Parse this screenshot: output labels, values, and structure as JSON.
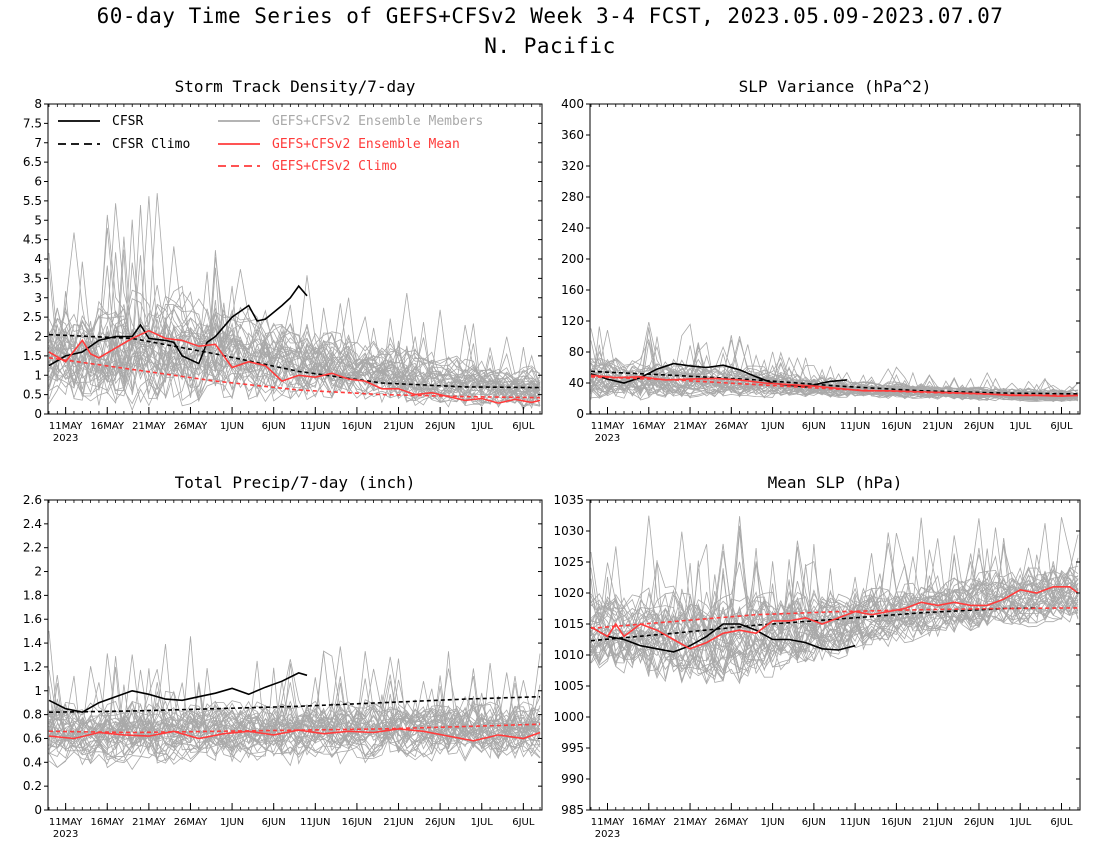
{
  "figure": {
    "title": "60-day Time Series of GEFS+CFSv2 Week 3-4 FCST, 2023.05.09-2023.07.07",
    "subtitle": "N. Pacific"
  },
  "colors": {
    "cfsr": "#000000",
    "members": "#a9a9a9",
    "ensemble_mean": "#ff3b3b",
    "gefs_climo": "#ff3b3b"
  },
  "legend": {
    "items": [
      {
        "label": "CFSR",
        "style": "solid",
        "color": "#000000"
      },
      {
        "label": "CFSR Climo",
        "style": "dashed",
        "color": "#000000"
      },
      {
        "label": "GEFS+CFSv2 Ensemble Members",
        "style": "solid",
        "color": "#a9a9a9"
      },
      {
        "label": "GEFS+CFSv2 Ensemble Mean",
        "style": "solid",
        "color": "#ff3b3b"
      },
      {
        "label": "GEFS+CFSv2 Climo",
        "style": "dashed",
        "color": "#ff3b3b"
      }
    ]
  },
  "chart_data": [
    {
      "type": "line",
      "title": "Storm Track Density/7-day",
      "x_start": "2023-05-09",
      "x_days": 60,
      "x_ticks": [
        "11MAY",
        "16MAY",
        "21MAY",
        "26MAY",
        "1JUN",
        "6JUN",
        "11JUN",
        "16JUN",
        "21JUN",
        "26JUN",
        "1JUL",
        "6JUL"
      ],
      "x_year_label": "2023",
      "ylim": [
        0,
        8
      ],
      "yticks": [
        "0",
        "0.5",
        "1",
        "1.5",
        "2",
        "2.5",
        "3",
        "3.5",
        "4",
        "4.5",
        "5",
        "5.5",
        "6",
        "6.5",
        "7",
        "7.5",
        "8"
      ],
      "grid": false,
      "series": [
        {
          "name": "CFSR",
          "color": "#000000",
          "dash": false,
          "x": [
            0,
            2,
            4,
            6,
            8,
            10,
            11,
            12,
            14,
            15,
            16,
            18,
            19,
            20,
            22,
            24,
            25,
            26,
            28,
            29,
            30,
            31
          ],
          "y": [
            1.25,
            1.5,
            1.6,
            1.9,
            2.0,
            2.0,
            2.3,
            1.95,
            1.9,
            1.85,
            1.5,
            1.3,
            1.85,
            2.0,
            2.5,
            2.8,
            2.4,
            2.45,
            2.8,
            3.0,
            3.3,
            3.05
          ]
        },
        {
          "name": "CFSR Climo",
          "color": "#000000",
          "dash": true,
          "x": [
            0,
            10,
            20,
            30,
            40,
            50,
            59
          ],
          "y": [
            2.05,
            1.95,
            1.55,
            1.1,
            0.8,
            0.7,
            0.68
          ]
        },
        {
          "name": "GEFS+CFSv2 Ensemble Mean",
          "color": "#ff3b3b",
          "dash": false,
          "x": [
            0,
            2,
            4,
            5,
            6,
            8,
            10,
            12,
            14,
            16,
            18,
            20,
            22,
            24,
            26,
            28,
            30,
            32,
            34,
            36,
            38,
            40,
            42,
            44,
            46,
            48,
            50,
            52,
            54,
            56,
            58,
            59
          ],
          "y": [
            1.6,
            1.35,
            1.9,
            1.55,
            1.45,
            1.7,
            1.95,
            2.15,
            1.95,
            1.9,
            1.75,
            1.8,
            1.2,
            1.35,
            1.25,
            0.85,
            1.0,
            0.95,
            1.05,
            0.9,
            0.85,
            0.65,
            0.65,
            0.5,
            0.55,
            0.45,
            0.35,
            0.4,
            0.28,
            0.38,
            0.3,
            0.35
          ]
        },
        {
          "name": "GEFS+CFSv2 Climo",
          "color": "#ff3b3b",
          "dash": true,
          "x": [
            0,
            10,
            20,
            30,
            40,
            50,
            59
          ],
          "y": [
            1.45,
            1.15,
            0.85,
            0.62,
            0.5,
            0.45,
            0.42
          ]
        }
      ],
      "members": {
        "count": 40,
        "center": [
          1.6,
          1.6,
          1.7,
          1.8,
          1.7,
          1.6,
          1.4,
          1.3,
          1.1,
          0.95,
          0.85,
          0.75,
          0.65
        ],
        "spread": [
          1.6,
          1.6,
          1.9,
          2.0,
          1.7,
          1.5,
          1.3,
          1.1,
          1.0,
          0.9,
          0.8,
          0.7,
          0.7
        ],
        "min": 0
      }
    },
    {
      "type": "line",
      "title": "SLP Variance (hPa^2)",
      "x_start": "2023-05-09",
      "x_days": 60,
      "x_ticks": [
        "11MAY",
        "16MAY",
        "21MAY",
        "26MAY",
        "1JUN",
        "6JUN",
        "11JUN",
        "16JUN",
        "21JUN",
        "26JUN",
        "1JUL",
        "6JUL"
      ],
      "x_year_label": "2023",
      "ylim": [
        0,
        400
      ],
      "yticks": [
        "0",
        "40",
        "80",
        "120",
        "160",
        "200",
        "240",
        "280",
        "320",
        "360",
        "400"
      ],
      "grid": false,
      "series": [
        {
          "name": "CFSR",
          "color": "#000000",
          "dash": false,
          "x": [
            0,
            2,
            4,
            6,
            8,
            10,
            12,
            14,
            16,
            18,
            20,
            22,
            24,
            26,
            28,
            29,
            31
          ],
          "y": [
            52,
            45,
            40,
            47,
            58,
            65,
            62,
            60,
            63,
            57,
            48,
            40,
            37,
            35,
            40,
            42,
            44
          ]
        },
        {
          "name": "CFSR Climo",
          "color": "#000000",
          "dash": true,
          "x": [
            0,
            10,
            20,
            30,
            40,
            50,
            59
          ],
          "y": [
            55,
            50,
            44,
            36,
            30,
            27,
            26
          ]
        },
        {
          "name": "GEFS+CFSv2 Ensemble Mean",
          "color": "#ff3b3b",
          "dash": false,
          "x": [
            0,
            3,
            6,
            9,
            12,
            15,
            18,
            21,
            24,
            27,
            30,
            33,
            36,
            39,
            42,
            45,
            48,
            51,
            54,
            57,
            59
          ],
          "y": [
            50,
            47,
            48,
            44,
            45,
            46,
            44,
            40,
            38,
            36,
            33,
            30,
            30,
            29,
            28,
            27,
            26,
            24,
            24,
            23,
            24
          ]
        },
        {
          "name": "GEFS+CFSv2 Climo",
          "color": "#ff3b3b",
          "dash": true,
          "x": [
            0,
            10,
            20,
            30,
            40,
            50,
            59
          ],
          "y": [
            48,
            44,
            38,
            32,
            28,
            25,
            24
          ]
        }
      ],
      "members": {
        "count": 40,
        "center": [
          48,
          47,
          47,
          45,
          42,
          39,
          35,
          32,
          30,
          28,
          27,
          25,
          24
        ],
        "spread": [
          38,
          36,
          34,
          30,
          26,
          20,
          16,
          14,
          13,
          12,
          12,
          11,
          10
        ],
        "min": 8
      }
    },
    {
      "type": "line",
      "title": "Total Precip/7-day (inch)",
      "x_start": "2023-05-09",
      "x_days": 60,
      "x_ticks": [
        "11MAY",
        "16MAY",
        "21MAY",
        "26MAY",
        "1JUN",
        "6JUN",
        "11JUN",
        "16JUN",
        "21JUN",
        "26JUN",
        "1JUL",
        "6JUL"
      ],
      "x_year_label": "2023",
      "ylim": [
        0,
        2.6
      ],
      "yticks": [
        "0",
        "0.2",
        "0.4",
        "0.6",
        "0.8",
        "1",
        "1.2",
        "1.4",
        "1.6",
        "1.8",
        "2",
        "2.2",
        "2.4",
        "2.6"
      ],
      "grid": false,
      "series": [
        {
          "name": "CFSR",
          "color": "#000000",
          "dash": false,
          "x": [
            0,
            2,
            4,
            6,
            8,
            10,
            12,
            14,
            16,
            18,
            20,
            22,
            24,
            26,
            28,
            30,
            31
          ],
          "y": [
            0.92,
            0.85,
            0.82,
            0.9,
            0.95,
            1.0,
            0.97,
            0.93,
            0.92,
            0.95,
            0.98,
            1.02,
            0.97,
            1.03,
            1.08,
            1.15,
            1.13
          ]
        },
        {
          "name": "CFSR Climo",
          "color": "#000000",
          "dash": true,
          "x": [
            0,
            10,
            20,
            30,
            40,
            50,
            59
          ],
          "y": [
            0.82,
            0.83,
            0.85,
            0.87,
            0.9,
            0.93,
            0.95
          ]
        },
        {
          "name": "GEFS+CFSv2 Ensemble Mean",
          "color": "#ff3b3b",
          "dash": false,
          "x": [
            0,
            3,
            6,
            9,
            12,
            15,
            18,
            21,
            24,
            27,
            30,
            33,
            36,
            39,
            42,
            45,
            48,
            51,
            54,
            57,
            59
          ],
          "y": [
            0.62,
            0.6,
            0.65,
            0.63,
            0.62,
            0.66,
            0.6,
            0.64,
            0.66,
            0.63,
            0.67,
            0.64,
            0.66,
            0.65,
            0.68,
            0.66,
            0.62,
            0.58,
            0.63,
            0.6,
            0.65
          ]
        },
        {
          "name": "GEFS+CFSv2 Climo",
          "color": "#ff3b3b",
          "dash": true,
          "x": [
            0,
            10,
            20,
            30,
            40,
            50,
            59
          ],
          "y": [
            0.66,
            0.65,
            0.66,
            0.67,
            0.68,
            0.7,
            0.72
          ]
        }
      ],
      "members": {
        "count": 40,
        "center": [
          0.62,
          0.62,
          0.63,
          0.63,
          0.64,
          0.64,
          0.65,
          0.65,
          0.66,
          0.66,
          0.66,
          0.65,
          0.65
        ],
        "spread": [
          0.35,
          0.35,
          0.35,
          0.34,
          0.34,
          0.34,
          0.33,
          0.33,
          0.33,
          0.32,
          0.32,
          0.32,
          0.32
        ],
        "min": 0.1
      }
    },
    {
      "type": "line",
      "title": "Mean SLP (hPa)",
      "x_start": "2023-05-09",
      "x_days": 60,
      "x_ticks": [
        "11MAY",
        "16MAY",
        "21MAY",
        "26MAY",
        "1JUN",
        "6JUN",
        "11JUN",
        "16JUN",
        "21JUN",
        "26JUN",
        "1JUL",
        "6JUL"
      ],
      "x_year_label": "2023",
      "ylim": [
        985,
        1035
      ],
      "yticks": [
        "985",
        "990",
        "995",
        "1000",
        "1005",
        "1010",
        "1015",
        "1020",
        "1025",
        "1030",
        "1035"
      ],
      "grid": false,
      "series": [
        {
          "name": "CFSR",
          "color": "#000000",
          "dash": false,
          "x": [
            0,
            2,
            4,
            6,
            8,
            10,
            12,
            14,
            16,
            18,
            20,
            22,
            24,
            26,
            28,
            30,
            32
          ],
          "y": [
            1014.5,
            1013,
            1012.5,
            1011.5,
            1011,
            1010.5,
            1011.5,
            1013,
            1015,
            1015,
            1014,
            1012.5,
            1012.5,
            1012,
            1011,
            1010.8,
            1011.5
          ]
        },
        {
          "name": "CFSR Climo",
          "color": "#000000",
          "dash": true,
          "x": [
            0,
            10,
            20,
            30,
            40,
            50,
            54
          ],
          "y": [
            1012.3,
            1013.5,
            1014.8,
            1015.8,
            1016.8,
            1017.5,
            1017.6
          ]
        },
        {
          "name": "GEFS+CFSv2 Ensemble Mean",
          "color": "#ff3b3b",
          "dash": false,
          "x": [
            0,
            2,
            3,
            4,
            6,
            8,
            10,
            12,
            14,
            16,
            18,
            20,
            22,
            24,
            26,
            28,
            30,
            32,
            34,
            36,
            38,
            40,
            42,
            44,
            46,
            48,
            50,
            52,
            54,
            56,
            58,
            59
          ],
          "y": [
            1014.5,
            1013,
            1015,
            1013,
            1015,
            1014,
            1012.5,
            1011,
            1012,
            1013.5,
            1014,
            1013.5,
            1015.5,
            1015.5,
            1016,
            1015,
            1016,
            1017,
            1016.5,
            1017,
            1017.5,
            1018.5,
            1018,
            1018.5,
            1018,
            1018,
            1019,
            1020.5,
            1020,
            1021,
            1021,
            1020
          ]
        },
        {
          "name": "GEFS+CFSv2 Climo",
          "color": "#ff3b3b",
          "dash": true,
          "x": [
            0,
            10,
            20,
            30,
            40,
            50,
            59
          ],
          "y": [
            1014.3,
            1015.4,
            1016.5,
            1017,
            1017.3,
            1017.5,
            1017.6
          ]
        }
      ],
      "members": {
        "count": 40,
        "center": [
          1014,
          1013.5,
          1013,
          1012.5,
          1013,
          1014,
          1015,
          1016,
          1017,
          1018,
          1019,
          1019.5,
          1020
        ],
        "spread": [
          8,
          9,
          10,
          10,
          9,
          8,
          7,
          6,
          6,
          6,
          6,
          6,
          6
        ],
        "min": 985
      }
    }
  ]
}
